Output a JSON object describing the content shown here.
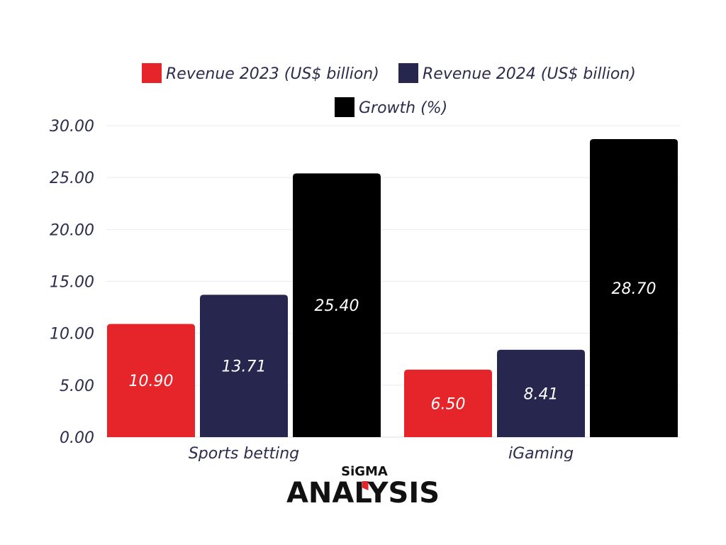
{
  "chart_data": {
    "type": "bar",
    "categories": [
      "Sports betting",
      "iGaming"
    ],
    "series": [
      {
        "name": "Revenue 2023 (US$ billion)",
        "values": [
          10.9,
          6.5
        ],
        "labels": [
          "10.90",
          "6.50"
        ],
        "color": "#e52529"
      },
      {
        "name": "Revenue 2024 (US$ billion)",
        "values": [
          13.71,
          8.41
        ],
        "labels": [
          "13.71",
          "8.41"
        ],
        "color": "#27264f"
      },
      {
        "name": "Growth (%)",
        "values": [
          25.4,
          28.7
        ],
        "labels": [
          "25.40",
          "28.70"
        ],
        "color": "#000000"
      }
    ],
    "yticks": [
      "0.00",
      "5.00",
      "10.00",
      "15.00",
      "20.00",
      "25.00",
      "30.00"
    ],
    "ylim": [
      0,
      30
    ],
    "grid": true,
    "legend": "top-center"
  },
  "branding": {
    "line1": "SiGMA",
    "line2": "ANALYSIS",
    "mark_color": "#e52529"
  }
}
